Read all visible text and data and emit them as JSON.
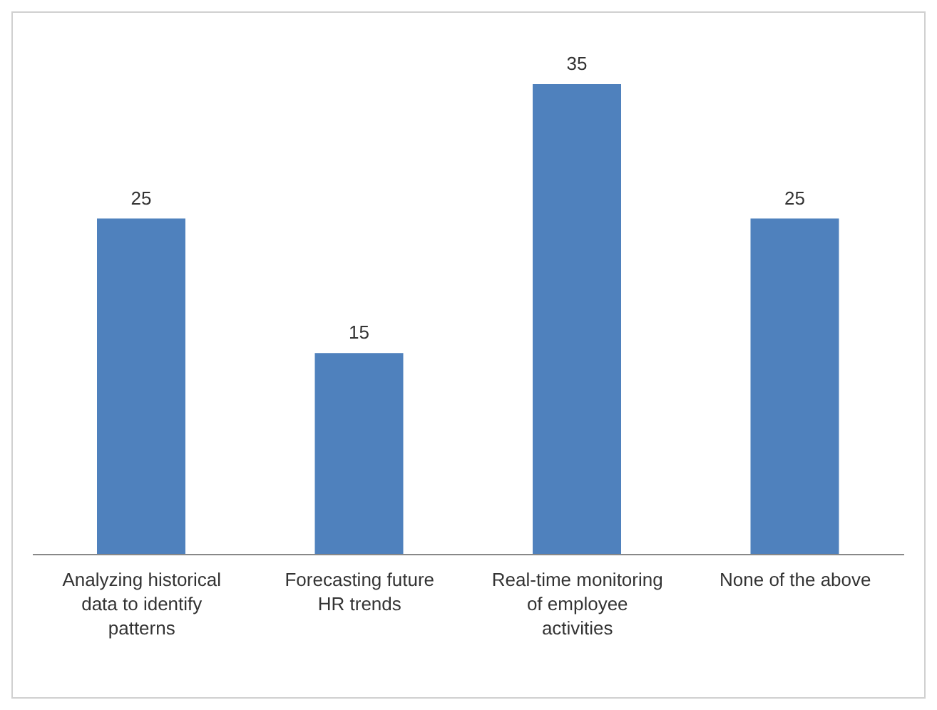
{
  "chart_data": {
    "type": "bar",
    "categories": [
      "Analyzing historical data to identify patterns",
      "Forecasting future HR trends",
      "Real-time monitoring of employee activities",
      "None of the above"
    ],
    "values": [
      25,
      15,
      35,
      25
    ],
    "color": "#4f81bd",
    "data_labels": true
  }
}
